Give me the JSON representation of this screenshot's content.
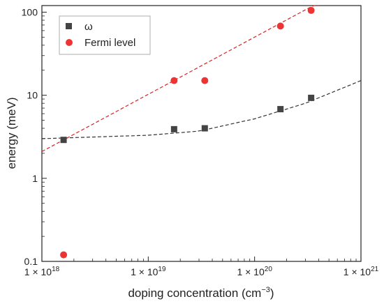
{
  "chart_data": {
    "type": "scatter",
    "xlabel": "doping concentration (cm",
    "xlabel_sup": "−3",
    "xlabel_end": ")",
    "ylabel": "energy (meV)",
    "xscale": "log",
    "yscale": "log",
    "xlim": [
      1e+18,
      1e+21
    ],
    "ylim": [
      0.1,
      120
    ],
    "x_ticks": [
      {
        "value": 1e+18,
        "mant": "1 × 10",
        "exp": "18"
      },
      {
        "value": 1e+19,
        "mant": "1 × 10",
        "exp": "19"
      },
      {
        "value": 1e+20,
        "mant": "1 × 10",
        "exp": "20"
      },
      {
        "value": 1e+21,
        "mant": "1 × 10",
        "exp": "21"
      }
    ],
    "y_ticks": [
      {
        "value": 0.1,
        "label": "0.1"
      },
      {
        "value": 1,
        "label": "1"
      },
      {
        "value": 10,
        "label": "10"
      },
      {
        "value": 100,
        "label": "100"
      }
    ],
    "legend_position": "top-left",
    "series": [
      {
        "name": "ω",
        "marker": "square",
        "color": "#444444",
        "x": [
          1.6e+18,
          1.75e+19,
          3.4e+19,
          1.75e+20,
          3.4e+20
        ],
        "y": [
          2.9,
          3.9,
          4.0,
          6.8,
          9.3
        ]
      },
      {
        "name": "Fermi level",
        "marker": "circle",
        "color": "#ee3333",
        "x": [
          1.6e+18,
          1.75e+19,
          3.4e+19,
          1.75e+20,
          3.4e+20
        ],
        "y": [
          0.12,
          15,
          15,
          68,
          105
        ]
      }
    ],
    "fits": [
      {
        "for": "ω",
        "color": "#333333",
        "dash": "dashed",
        "x": [
          1e+18,
          1e+19,
          3e+19,
          1e+20,
          3e+20,
          1e+21
        ],
        "y": [
          3.0,
          3.3,
          3.7,
          5.2,
          8.0,
          15.0
        ]
      },
      {
        "for": "Fermi level",
        "color": "#dd2222",
        "dash": "dashed",
        "x": [
          1e+18,
          4e+20
        ],
        "y": [
          2.1,
          130
        ]
      }
    ]
  }
}
